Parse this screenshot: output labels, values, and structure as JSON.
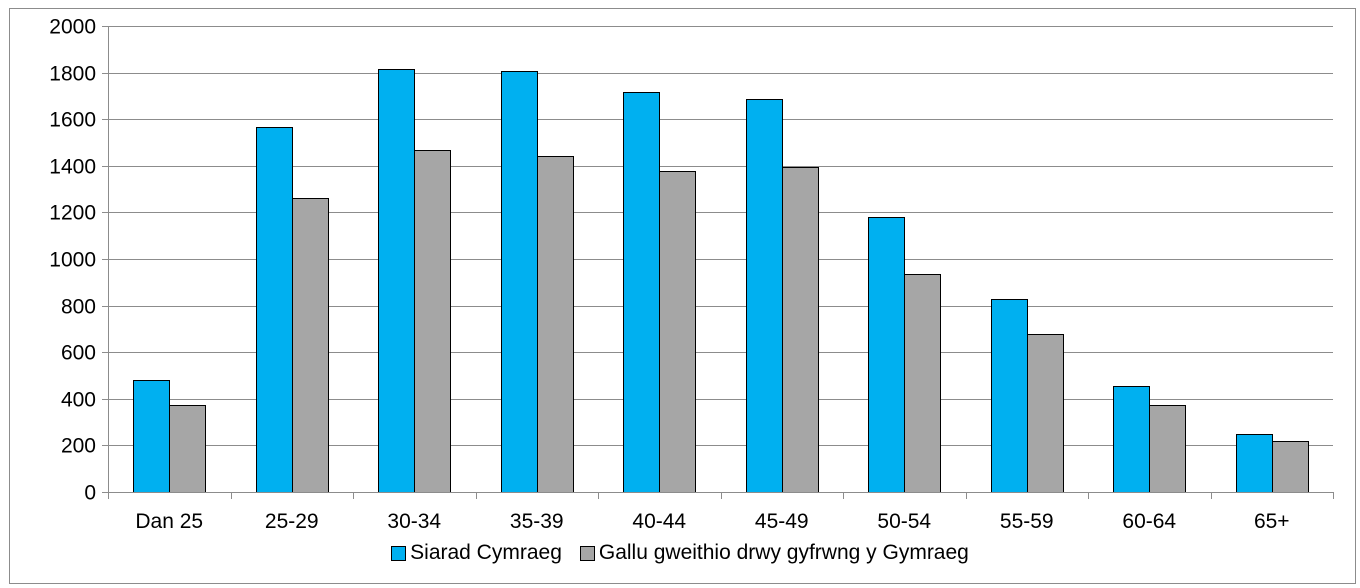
{
  "chart_data": {
    "type": "bar",
    "categories": [
      "Dan 25",
      "25-29",
      "30-34",
      "35-39",
      "40-44",
      "45-49",
      "50-54",
      "55-59",
      "60-64",
      "65+"
    ],
    "series": [
      {
        "name": "Siarad Cymraeg",
        "color": "#00b0f0",
        "values": [
          480,
          1565,
          1815,
          1805,
          1718,
          1685,
          1180,
          830,
          455,
          250
        ]
      },
      {
        "name": "Gallu gweithio drwy gyfrwng y Gymraeg",
        "color": "#a6a6a6",
        "values": [
          372,
          1260,
          1468,
          1440,
          1378,
          1395,
          937,
          680,
          375,
          220
        ]
      }
    ],
    "title": "",
    "xlabel": "",
    "ylabel": "",
    "ylim": [
      0,
      2000
    ],
    "yticks": [
      0,
      200,
      400,
      600,
      800,
      1000,
      1200,
      1400,
      1600,
      1800,
      2000
    ],
    "grid": true,
    "legend_position": "bottom"
  }
}
